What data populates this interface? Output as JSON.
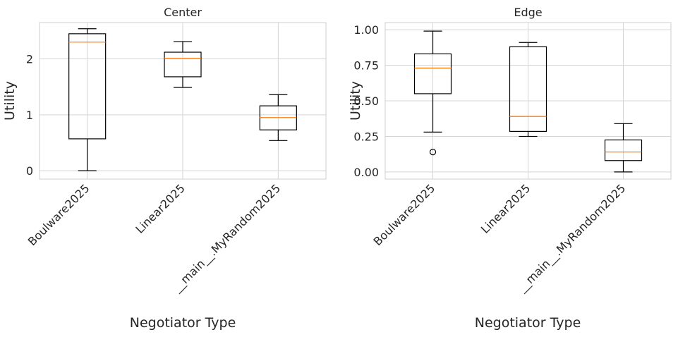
{
  "chart_data": [
    {
      "type": "box",
      "title": "Center",
      "xlabel": "Negotiator Type",
      "ylabel": "Utility",
      "ylim": [
        -0.15,
        2.65
      ],
      "yticks": [
        0,
        1,
        2
      ],
      "ytick_labels": [
        "0",
        "1",
        "2"
      ],
      "grid": true,
      "categories": [
        "Boulware2025",
        "Linear2025",
        "__main__.MyRandom2025"
      ],
      "boxes": [
        {
          "min": 0.0,
          "q1": 0.57,
          "median": 2.3,
          "q3": 2.45,
          "max": 2.54,
          "outliers": []
        },
        {
          "min": 1.49,
          "q1": 1.68,
          "median": 2.01,
          "q3": 2.12,
          "max": 2.31,
          "outliers": []
        },
        {
          "min": 0.54,
          "q1": 0.73,
          "median": 0.95,
          "q3": 1.16,
          "max": 1.36,
          "outliers": []
        }
      ]
    },
    {
      "type": "box",
      "title": "Edge",
      "xlabel": "Negotiator Type",
      "ylabel": "Utility",
      "ylim": [
        -0.05,
        1.05
      ],
      "yticks": [
        0,
        0.25,
        0.5,
        0.75,
        1.0
      ],
      "ytick_labels": [
        "0.00",
        "0.25",
        "0.50",
        "0.75",
        "1.00"
      ],
      "grid": true,
      "categories": [
        "Boulware2025",
        "Linear2025",
        "__main__.MyRandom2025"
      ],
      "boxes": [
        {
          "min": 0.28,
          "q1": 0.55,
          "median": 0.73,
          "q3": 0.83,
          "max": 0.99,
          "outliers": [
            0.14
          ]
        },
        {
          "min": 0.25,
          "q1": 0.285,
          "median": 0.39,
          "q3": 0.88,
          "max": 0.91,
          "outliers": []
        },
        {
          "min": 0.0,
          "q1": 0.08,
          "median": 0.14,
          "q3": 0.225,
          "max": 0.34,
          "outliers": []
        }
      ]
    }
  ],
  "colors": {
    "box": "#000000",
    "median": "#ff7f0e",
    "grid": "#d4d4d4",
    "frame": "#cfcfcf",
    "text": "#262626"
  }
}
